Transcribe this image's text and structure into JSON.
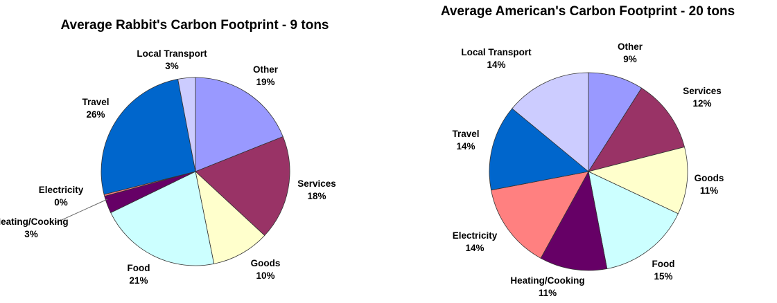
{
  "chart_data": [
    {
      "type": "pie",
      "title": "Average Rabbit's Carbon Footprint - 9 tons",
      "slices": [
        {
          "label": "Other",
          "value": 19,
          "value_label": "19%",
          "color": "#9999ff"
        },
        {
          "label": "Services",
          "value": 18,
          "value_label": "18%",
          "color": "#993366"
        },
        {
          "label": "Goods",
          "value": 10,
          "value_label": "10%",
          "color": "#ffffcc"
        },
        {
          "label": "Food",
          "value": 21,
          "value_label": "21%",
          "color": "#ccffff"
        },
        {
          "label": "Heating/Cooking",
          "value": 3,
          "value_label": "3%",
          "color": "#660066"
        },
        {
          "label": "Electricity",
          "value": 0.3,
          "value_label": "0%",
          "color": "#ff8080"
        },
        {
          "label": "Travel",
          "value": 26,
          "value_label": "26%",
          "color": "#0066cc"
        },
        {
          "label": "Local Transport",
          "value": 3,
          "value_label": "3%",
          "color": "#ccccff"
        }
      ]
    },
    {
      "type": "pie",
      "title": "Average American's Carbon Footprint - 20 tons",
      "slices": [
        {
          "label": "Other",
          "value": 9,
          "value_label": "9%",
          "color": "#9999ff"
        },
        {
          "label": "Services",
          "value": 12,
          "value_label": "12%",
          "color": "#993366"
        },
        {
          "label": "Goods",
          "value": 11,
          "value_label": "11%",
          "color": "#ffffcc"
        },
        {
          "label": "Food",
          "value": 15,
          "value_label": "15%",
          "color": "#ccffff"
        },
        {
          "label": "Heating/Cooking",
          "value": 11,
          "value_label": "11%",
          "color": "#660066"
        },
        {
          "label": "Electricity",
          "value": 14,
          "value_label": "14%",
          "color": "#ff8080"
        },
        {
          "label": "Travel",
          "value": 14,
          "value_label": "14%",
          "color": "#0066cc"
        },
        {
          "label": "Local Transport",
          "value": 14,
          "value_label": "14%",
          "color": "#ccccff"
        }
      ]
    }
  ]
}
